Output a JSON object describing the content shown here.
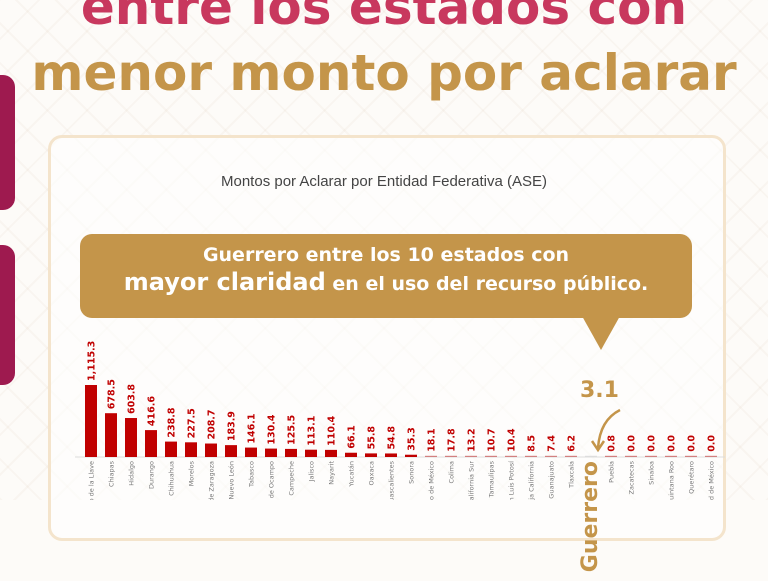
{
  "header": {
    "title_line1": "entre los estados con",
    "title_line2": "menor monto por aclarar"
  },
  "callout": {
    "line1": "Guerrero entre los 10 estados con",
    "line2_emphasis": "mayor claridad",
    "line2_rest": " en el uso del recurso público."
  },
  "highlight": {
    "label": "Guerrero",
    "value": "3.1"
  },
  "colors": {
    "bar": "#c00000",
    "accent_gold": "#c4954a",
    "accent_pink": "#c8385e"
  },
  "chart_data": {
    "type": "bar",
    "title": "Montos por Aclarar por Entidad Federativa (ASE)",
    "categories": [
      "Veracruz de Ignacio de la Llave",
      "Chiapas",
      "Hidalgo",
      "Durango",
      "Chihuahua",
      "Morelos",
      "Coahuila de Zaragoza",
      "Nuevo León",
      "Tabasco",
      "Michoacán de Ocampo",
      "Campeche",
      "Jalisco",
      "Nayarit",
      "Yucatán",
      "Oaxaca",
      "Aguascalientes",
      "Sonora",
      "Estado de México",
      "Colima",
      "Baja California Sur",
      "Tamaulipas",
      "San Luis Potosí",
      "Baja California",
      "Guanajuato",
      "Tlaxcala",
      "Guerrero",
      "Puebla",
      "Zacatecas",
      "Sinaloa",
      "Quintana Roo",
      "Querétaro",
      "Ciudad de México"
    ],
    "values": [
      1115.3,
      678.5,
      603.8,
      416.6,
      238.8,
      227.5,
      208.7,
      183.9,
      146.1,
      130.4,
      125.5,
      113.1,
      110.4,
      66.1,
      55.8,
      54.8,
      35.3,
      18.1,
      17.8,
      13.2,
      10.7,
      10.4,
      8.5,
      7.4,
      6.2,
      3.1,
      0.8,
      0.0,
      0.0,
      0.0,
      0.0,
      0.0
    ],
    "data_labels": [
      "1,115.3",
      "678.5",
      "603.8",
      "416.6",
      "238.8",
      "227.5",
      "208.7",
      "183.9",
      "146.1",
      "130.4",
      "125.5",
      "113.1",
      "110.4",
      "66.1",
      "55.8",
      "54.8",
      "35.3",
      "18.1",
      "17.8",
      "13.2",
      "10.7",
      "10.4",
      "8.5",
      "7.4",
      "6.2",
      "",
      "0.8",
      "0.0",
      "0.0",
      "0.0",
      "0.0",
      "0.0"
    ],
    "highlight_category": "Guerrero",
    "xlabel": "",
    "ylabel": "",
    "grid": false
  }
}
